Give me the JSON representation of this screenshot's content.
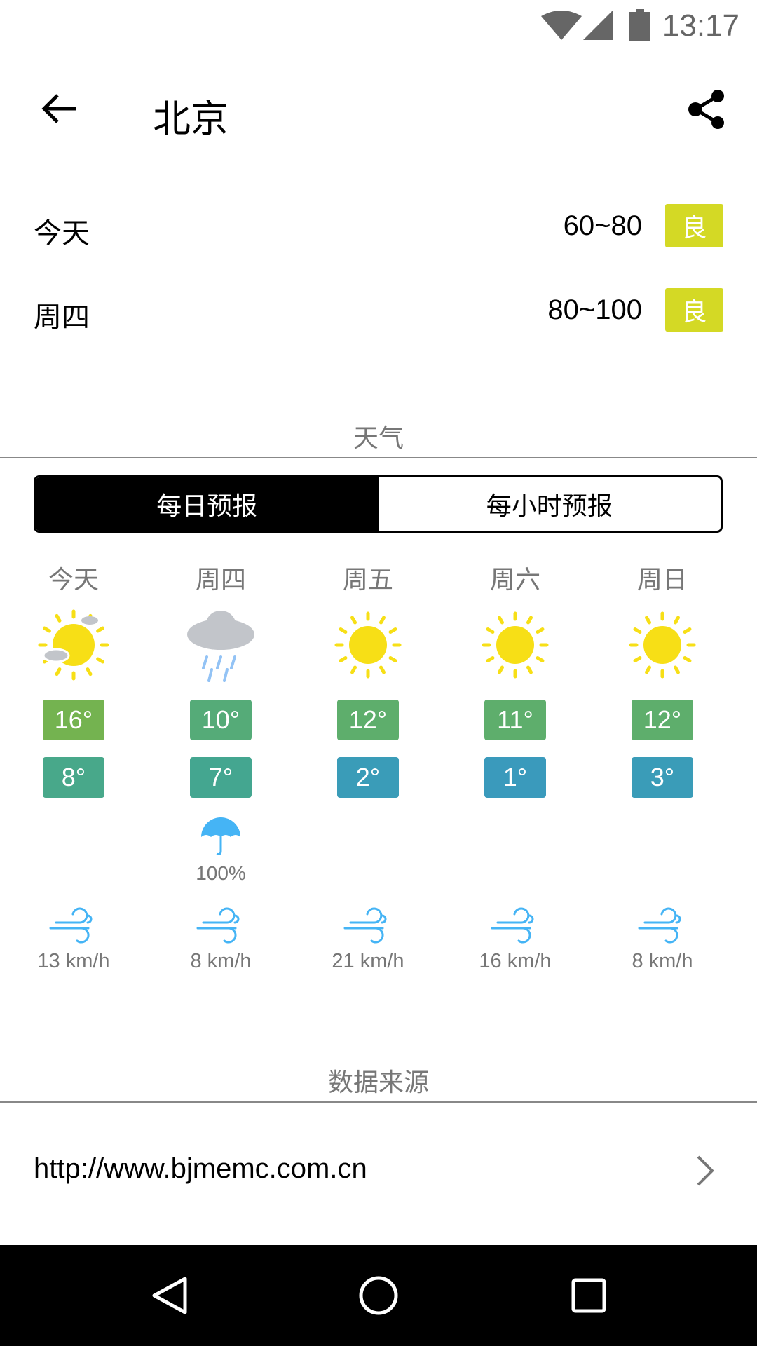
{
  "status_bar": {
    "time": "13:17",
    "icons": [
      "wifi-icon",
      "signal-icon",
      "battery-icon"
    ]
  },
  "toolbar": {
    "title": "北京",
    "back_icon": "arrow-left-icon",
    "share_icon": "share-icon"
  },
  "aqi": [
    {
      "day": "今天",
      "range": "60~80",
      "level": "良"
    },
    {
      "day": "周四",
      "range": "80~100",
      "level": "良"
    }
  ],
  "aqi_color": "#d4d925",
  "weather_section": {
    "title": "天气",
    "tabs": [
      {
        "label": "每日预报",
        "selected": true
      },
      {
        "label": "每小时预报",
        "selected": false
      }
    ]
  },
  "forecast": [
    {
      "day": "今天",
      "icon": "partly-cloudy-icon",
      "high": "16°",
      "low": "8°",
      "high_color": "#74b350",
      "low_color": "#48a88a",
      "rain": "",
      "wind": "13 km/h"
    },
    {
      "day": "周四",
      "icon": "rain-icon",
      "high": "10°",
      "low": "7°",
      "high_color": "#55ab78",
      "low_color": "#44a690",
      "rain": "100%",
      "wind": "8 km/h"
    },
    {
      "day": "周五",
      "icon": "sun-icon",
      "high": "12°",
      "low": "2°",
      "high_color": "#5eae6c",
      "low_color": "#3a9cb8",
      "rain": "",
      "wind": "21 km/h"
    },
    {
      "day": "周六",
      "icon": "sun-icon",
      "high": "11°",
      "low": "1°",
      "high_color": "#5eae6c",
      "low_color": "#3a9abc",
      "rain": "",
      "wind": "16 km/h"
    },
    {
      "day": "周日",
      "icon": "sun-icon",
      "high": "12°",
      "low": "3°",
      "high_color": "#5eae6c",
      "low_color": "#3a9cb8",
      "rain": "",
      "wind": "8 km/h"
    }
  ],
  "source_section": {
    "title": "数据来源",
    "url": "http://www.bjmemc.com.cn"
  },
  "nav_bar": {
    "icons": [
      "back-triangle-icon",
      "home-circle-icon",
      "recents-square-icon"
    ]
  }
}
